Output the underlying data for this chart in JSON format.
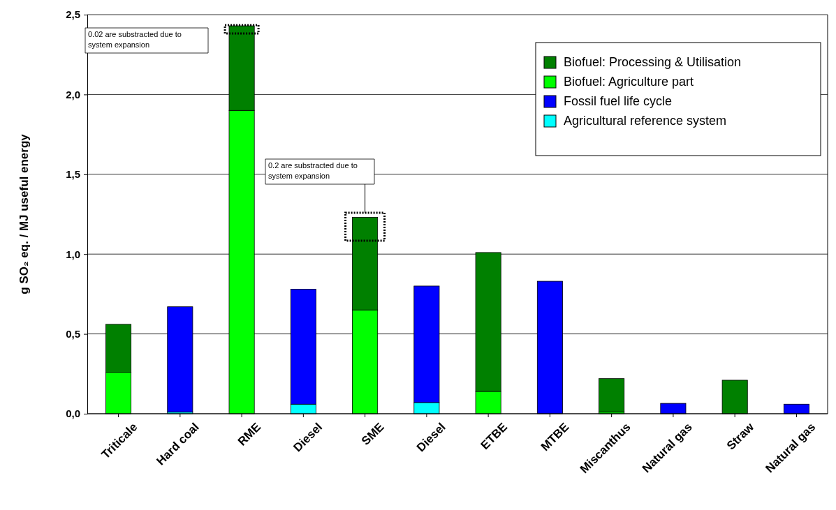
{
  "chart_data": {
    "type": "bar",
    "stacked": true,
    "ylabel": "g SO₂ eq. / MJ useful energy",
    "categories": [
      "Triticale",
      "Hard coal",
      "RME",
      "Diesel",
      "SME",
      "Diesel",
      "ETBE",
      "MTBE",
      "Miscanthus",
      "Natural gas",
      "Straw",
      "Natural gas"
    ],
    "series": [
      {
        "name": "Agricultural reference system",
        "color": "#00ffff",
        "values": [
          null,
          0.01,
          null,
          0.06,
          null,
          0.07,
          null,
          null,
          null,
          null,
          null,
          null
        ]
      },
      {
        "name": "Fossil fuel life cycle",
        "color": "#0000ff",
        "values": [
          null,
          0.66,
          null,
          0.72,
          null,
          0.73,
          null,
          0.83,
          null,
          0.065,
          null,
          0.06
        ]
      },
      {
        "name": "Biofuel: Agriculture part",
        "color": "#00ff00",
        "values": [
          0.26,
          null,
          1.9,
          null,
          0.65,
          null,
          0.14,
          null,
          0.01,
          null,
          null,
          null
        ]
      },
      {
        "name": "Biofuel: Processing & Utilisation",
        "color": "#008000",
        "values": [
          0.3,
          null,
          0.53,
          null,
          0.58,
          null,
          0.87,
          null,
          0.21,
          null,
          0.21,
          null
        ]
      }
    ],
    "ylim": [
      0,
      2.5
    ],
    "yticks": [
      {
        "value": 0,
        "label": "0,0"
      },
      {
        "value": 0.5,
        "label": "0,5"
      },
      {
        "value": 1,
        "label": "1,0"
      },
      {
        "value": 1.5,
        "label": "1,5"
      },
      {
        "value": 2,
        "label": "2,0"
      },
      {
        "value": 2.5,
        "label": "2,5"
      }
    ],
    "grid": "y",
    "legend": "top right",
    "annotations": [
      "0.02 are substracted due to system expansion",
      "0.2 are substracted due to system expansion"
    ]
  }
}
